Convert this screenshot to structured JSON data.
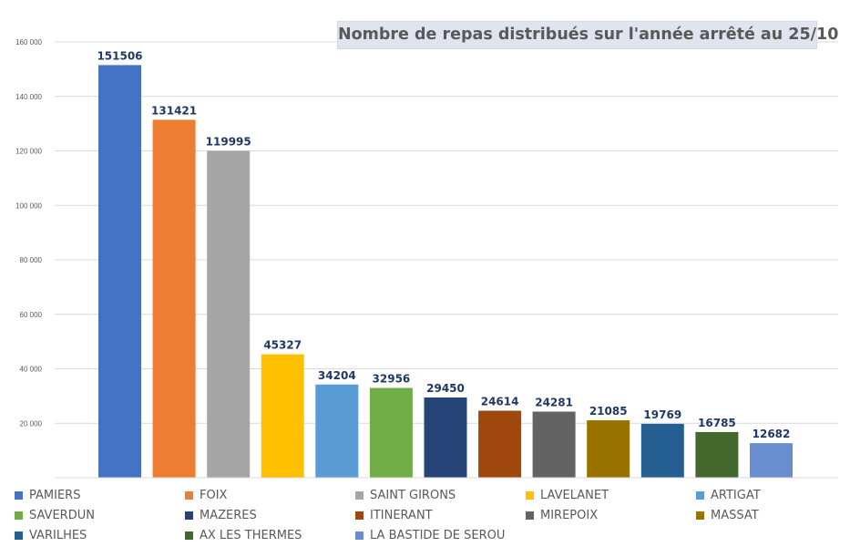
{
  "chart_data": {
    "type": "bar",
    "title": "Nombre de repas distribués sur l'année arrêté au 25/10",
    "xlabel": "",
    "ylabel": "",
    "ylim": [
      0,
      160000
    ],
    "y_ticks": [
      "160 000",
      "140 000",
      "120 000",
      "100 000",
      "80 000",
      "60 000",
      "40 000",
      "20 000"
    ],
    "grid": true,
    "legend_position": "bottom",
    "categories": [
      "PAMIERS",
      "FOIX",
      "SAINT GIRONS",
      "LAVELANET",
      "ARTIGAT",
      "SAVERDUN",
      "MAZERES",
      "ITINERANT",
      "MIREPOIX",
      "MASSAT",
      "VARILHES",
      "AX LES THERMES",
      "LA BASTIDE DE SEROU"
    ],
    "values": [
      151506,
      131421,
      119995,
      45327,
      34204,
      32956,
      29450,
      24614,
      24281,
      21085,
      19769,
      16785,
      12682
    ],
    "colors": [
      "#4472c4",
      "#ed7d31",
      "#a5a5a5",
      "#ffc000",
      "#5b9bd5",
      "#70ad47",
      "#264478",
      "#9e480e",
      "#636363",
      "#997300",
      "#255e91",
      "#43682b",
      "#698ed0"
    ],
    "label_color": "#1f3864",
    "gridline_color": "#d9d9d9"
  }
}
